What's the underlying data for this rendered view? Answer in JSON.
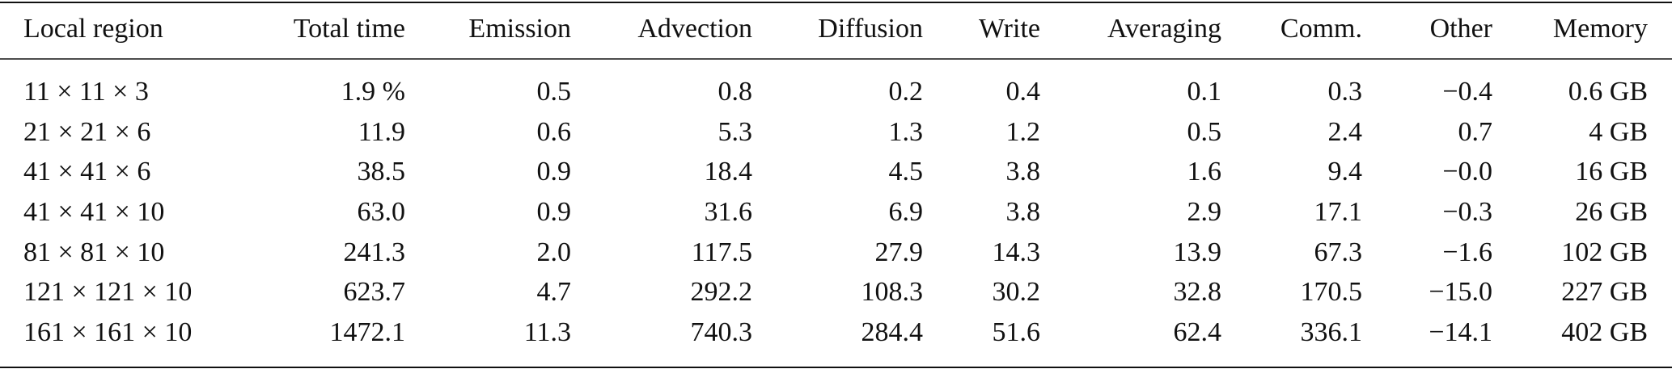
{
  "table": {
    "header": [
      "Local region",
      "Total time",
      "Emission",
      "Advection",
      "Diffusion",
      "Write",
      "Averaging",
      "Comm.",
      "Other",
      "Memory"
    ],
    "rows": [
      [
        "11 × 11 × 3",
        "1.9 %",
        "0.5",
        "0.8",
        "0.2",
        "0.4",
        "0.1",
        "0.3",
        "−0.4",
        "0.6 GB"
      ],
      [
        "21 × 21 × 6",
        "11.9",
        "0.6",
        "5.3",
        "1.3",
        "1.2",
        "0.5",
        "2.4",
        "0.7",
        "4 GB"
      ],
      [
        "41 × 41 × 6",
        "38.5",
        "0.9",
        "18.4",
        "4.5",
        "3.8",
        "1.6",
        "9.4",
        "−0.0",
        "16 GB"
      ],
      [
        "41 × 41 × 10",
        "63.0",
        "0.9",
        "31.6",
        "6.9",
        "3.8",
        "2.9",
        "17.1",
        "−0.3",
        "26 GB"
      ],
      [
        "81 × 81 × 10",
        "241.3",
        "2.0",
        "117.5",
        "27.9",
        "14.3",
        "13.9",
        "67.3",
        "−1.6",
        "102 GB"
      ],
      [
        "121 × 121 × 10",
        "623.7",
        "4.7",
        "292.2",
        "108.3",
        "30.2",
        "32.8",
        "170.5",
        "−15.0",
        "227 GB"
      ],
      [
        "161 × 161 × 10",
        "1472.1",
        "11.3",
        "740.3",
        "284.4",
        "51.6",
        "62.4",
        "336.1",
        "−14.1",
        "402 GB"
      ]
    ]
  }
}
